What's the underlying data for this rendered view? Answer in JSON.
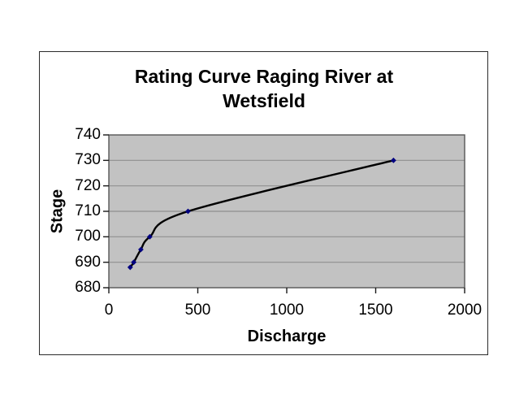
{
  "chart_data": {
    "type": "line",
    "title": "Rating Curve Raging River at Wetsfield",
    "title_lines": [
      "Rating Curve Raging River at",
      "Wetsfield"
    ],
    "xlabel": "Discharge",
    "ylabel": "Stage",
    "x": [
      120,
      140,
      180,
      230,
      445,
      1600
    ],
    "y": [
      688,
      690,
      695,
      700,
      710,
      730
    ],
    "xlim": [
      0,
      2000
    ],
    "ylim": [
      680,
      740
    ],
    "xticks": [
      0,
      500,
      1000,
      1500,
      2000
    ],
    "yticks": [
      680,
      690,
      700,
      710,
      720,
      730,
      740
    ],
    "grid": "horizontal-only",
    "legend": "none",
    "line_smooth": true,
    "marker": "diamond",
    "colors": {
      "line": "#000000",
      "marker": "#000080",
      "plot_background": "#c2c2c2",
      "gridline": "#8f8f8f",
      "axis": "#555555",
      "tick": "#1a1a1a",
      "text": "#000000",
      "frame_border": "#2b2b2b",
      "page_background": "#ffffff"
    }
  }
}
